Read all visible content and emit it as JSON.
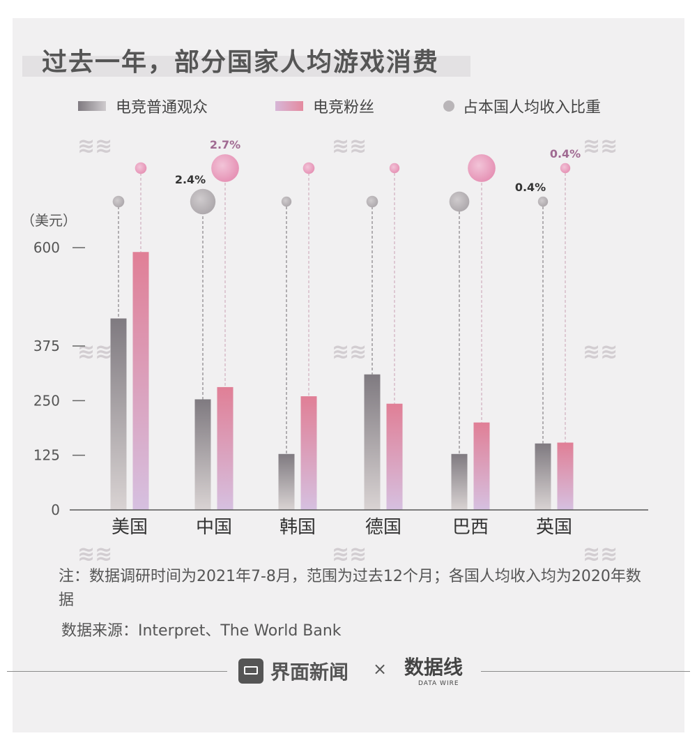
{
  "title": "过去一年，部分国家人均游戏消费",
  "legend": {
    "normal": "电竞普通观众",
    "fan": "电竞粉丝",
    "ratio": "占本国人均收入比重"
  },
  "colors": {
    "normal_top": "#7f7a80",
    "normal_bottom": "#d9d3d3",
    "fan_top": "#e07f96",
    "fan_bottom": "#d6c0e0",
    "bubble_normal": "#b9b5b8",
    "bubble_fan": "#e8a0bc",
    "label_fan": "#a06a92"
  },
  "chart_data": {
    "type": "bar",
    "categories": [
      "美国",
      "中国",
      "韩国",
      "德国",
      "巴西",
      "英国"
    ],
    "ylabel": "（美元）",
    "ylim": [
      0,
      600
    ],
    "yticks": [
      "0",
      "125",
      "250",
      "375",
      "600"
    ],
    "series": [
      {
        "name": "电竞普通观众",
        "values": [
          438,
          253,
          128,
          310,
          128,
          152
        ]
      },
      {
        "name": "电竞粉丝",
        "values": [
          590,
          281,
          260,
          243,
          200,
          154
        ]
      }
    ],
    "income_share": {
      "name": "占本国人均收入比重",
      "normal": [
        0.6,
        2.4,
        0.4,
        0.6,
        1.7,
        0.4
      ],
      "fan": [
        0.6,
        2.7,
        0.6,
        0.4,
        2.7,
        0.4
      ],
      "labels": [
        {
          "text": "2.7%",
          "series": "fan",
          "category": "中国"
        },
        {
          "text": "2.4%",
          "series": "normal",
          "category": "中国"
        },
        {
          "text": "0.4%",
          "series": "fan",
          "category": "英国"
        },
        {
          "text": "0.4%",
          "series": "normal",
          "category": "英国"
        }
      ]
    }
  },
  "note": "注：数据调研时间为2021年7-8月，范围为过去12个月；各国人均收入均为2020年数据",
  "source": "数据来源：Interpret、The World Bank",
  "footer": {
    "brand": "界面新闻",
    "times": "×",
    "logo_text": "数据线",
    "logo_sub": "DATA WIRE"
  }
}
